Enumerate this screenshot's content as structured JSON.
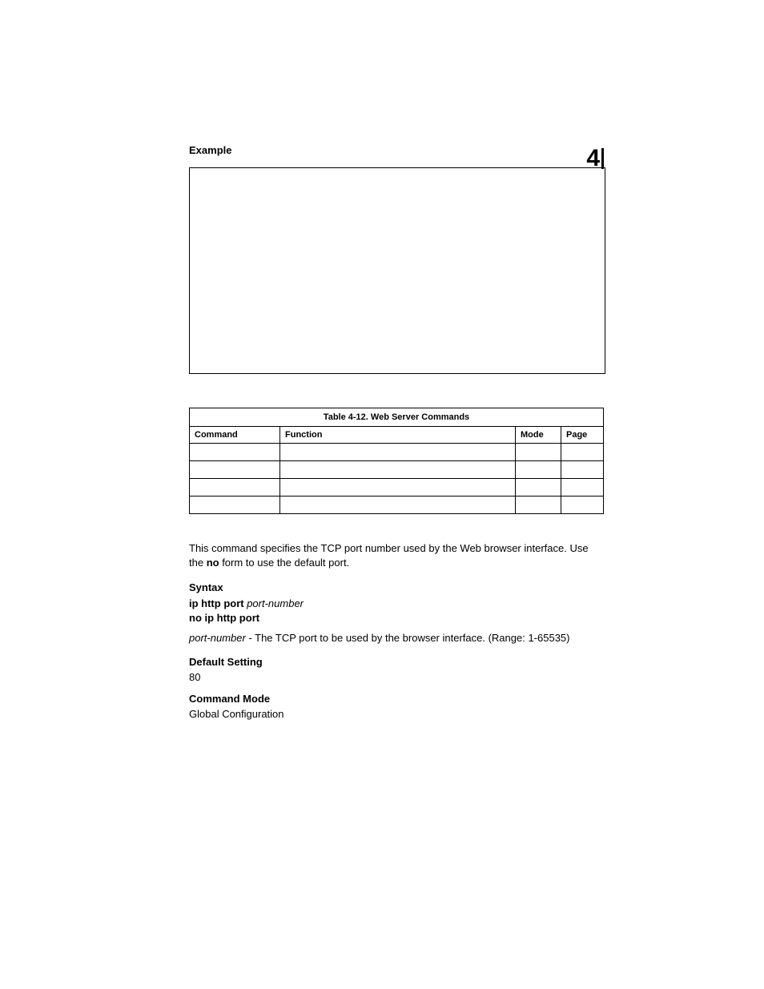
{
  "chapter_number": "4",
  "headings": {
    "example": "Example",
    "syntax": "Syntax",
    "default_setting": "Default Setting",
    "command_mode": "Command Mode"
  },
  "table": {
    "caption": "Table 4-12.  Web Server Commands",
    "headers": {
      "command": "Command",
      "function": "Function",
      "mode": "Mode",
      "page": "Page"
    }
  },
  "body": {
    "intro_part1": "This command specifies the TCP port number used by the Web browser interface. Use the ",
    "intro_bold": "no",
    "intro_part2": " form to use the default port."
  },
  "syntax": {
    "line1_bold": "ip http port ",
    "line1_italic": "port-number",
    "line2_bold": "no ip http port",
    "param_italic": "port-number",
    "param_rest": " - The TCP port to be used by the browser interface. (Range: 1-65535)"
  },
  "default_setting_value": "80",
  "command_mode_value": "Global Configuration"
}
